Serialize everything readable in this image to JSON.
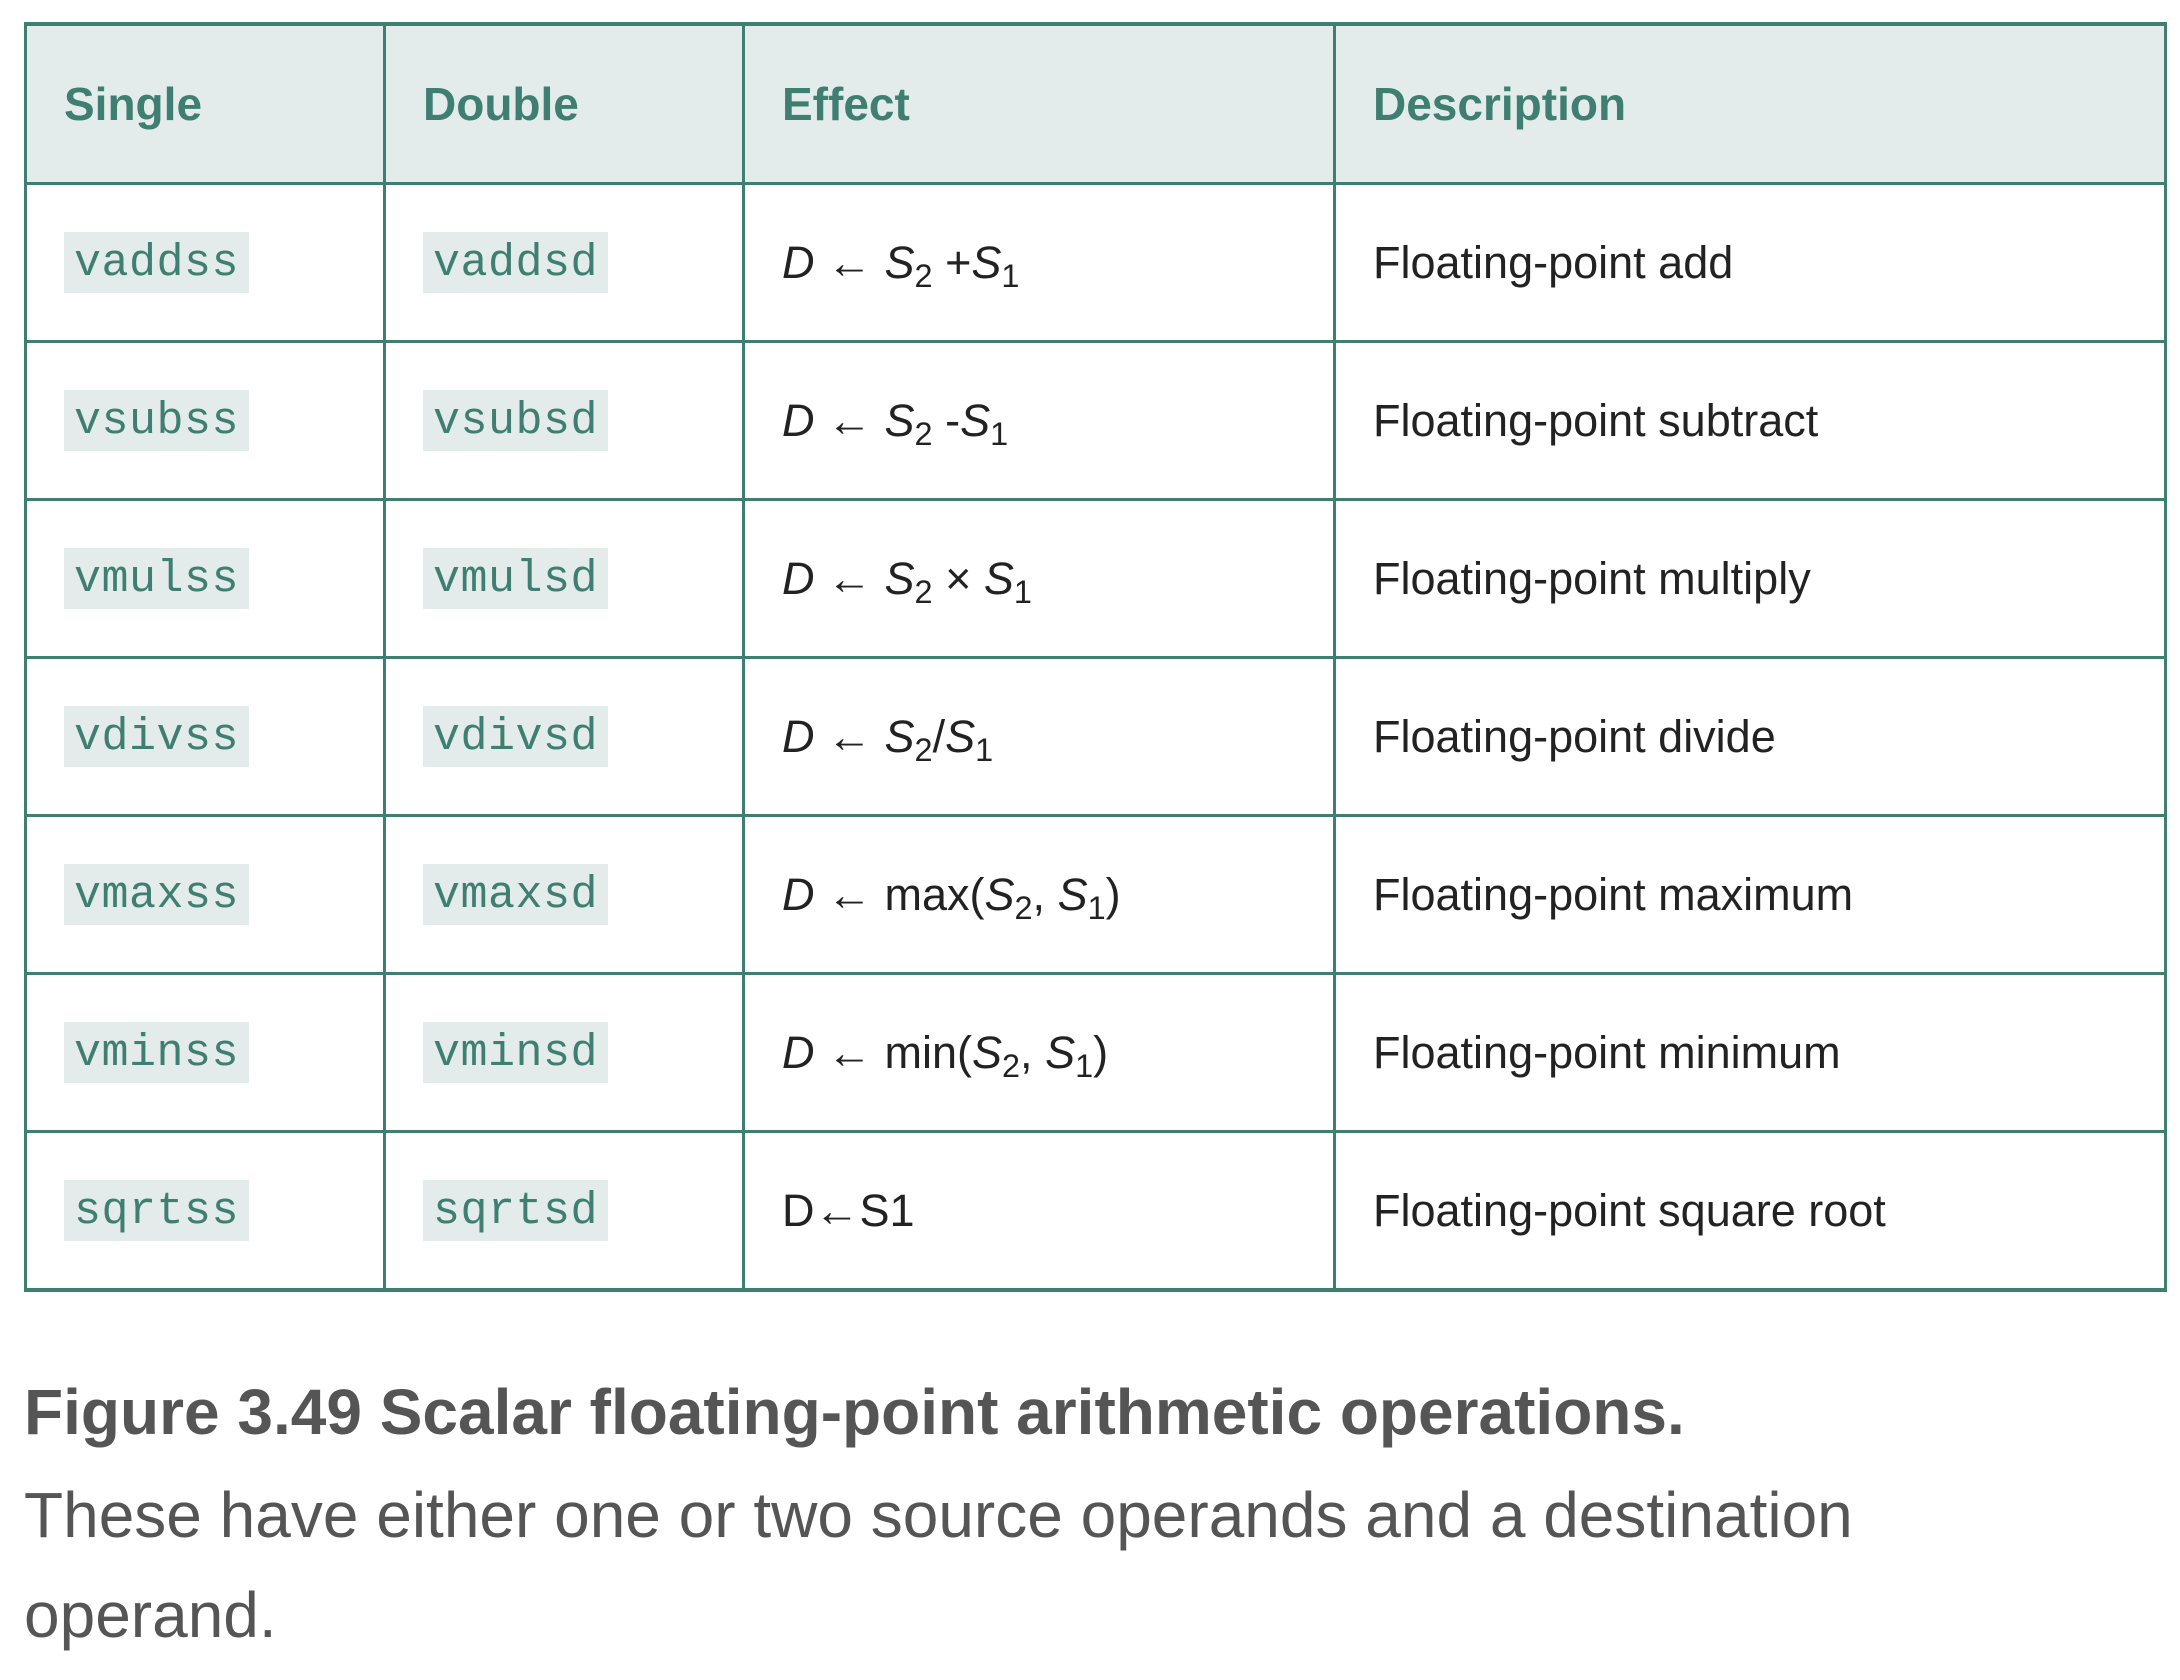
{
  "table": {
    "headers": [
      "Single",
      "Double",
      "Effect",
      "Description"
    ],
    "rows": [
      {
        "single": "vaddss",
        "double": "vaddsd",
        "effect": {
          "dest": "D",
          "arrow": "←",
          "fn": "",
          "s2": "S",
          "s2sub": "2",
          "op": " +",
          "s1": "S",
          "s1sub": "1",
          "close": ""
        },
        "description": "Floating-point add"
      },
      {
        "single": "vsubss",
        "double": "vsubsd",
        "effect": {
          "dest": "D",
          "arrow": "←",
          "fn": "",
          "s2": "S",
          "s2sub": "2",
          "op": " -",
          "s1": "S",
          "s1sub": "1",
          "close": ""
        },
        "description": "Floating-point subtract"
      },
      {
        "single": "vmulss",
        "double": "vmulsd",
        "effect": {
          "dest": "D",
          "arrow": "←",
          "fn": "",
          "s2": "S",
          "s2sub": "2",
          "op": " × ",
          "s1": "S",
          "s1sub": "1",
          "close": ""
        },
        "description": "Floating-point multiply"
      },
      {
        "single": "vdivss",
        "double": "vdivsd",
        "effect": {
          "dest": "D",
          "arrow": "←",
          "fn": "",
          "s2": "S",
          "s2sub": "2",
          "op": "/",
          "s1": "S",
          "s1sub": "1",
          "close": ""
        },
        "description": "Floating-point divide"
      },
      {
        "single": "vmaxss",
        "double": "vmaxsd",
        "effect": {
          "dest": "D",
          "arrow": "←",
          "fn": " max(",
          "s2": "S",
          "s2sub": "2",
          "op": ", ",
          "s1": "S",
          "s1sub": "1",
          "close": ")"
        },
        "description": "Floating-point maximum"
      },
      {
        "single": "vminss",
        "double": "vminsd",
        "effect": {
          "dest": "D",
          "arrow": "←",
          "fn": " min(",
          "s2": "S",
          "s2sub": "2",
          "op": ", ",
          "s1": "S",
          "s1sub": "1",
          "close": ")"
        },
        "description": "Floating-point minimum"
      }
    ],
    "last_row": {
      "single": "sqrtss",
      "double": "sqrtsd",
      "effect": "D←S1",
      "description": "Floating-point square root"
    }
  },
  "caption": {
    "title": "Figure 3.49 Scalar floating-point arithmetic operations.",
    "body": "These have either one or two source operands and a destination operand."
  },
  "colors": {
    "accent": "#3f7f72",
    "header_bg": "#e3ecea",
    "code_bg": "#e3ecea",
    "body_text": "#222222",
    "caption_text": "#555555"
  }
}
